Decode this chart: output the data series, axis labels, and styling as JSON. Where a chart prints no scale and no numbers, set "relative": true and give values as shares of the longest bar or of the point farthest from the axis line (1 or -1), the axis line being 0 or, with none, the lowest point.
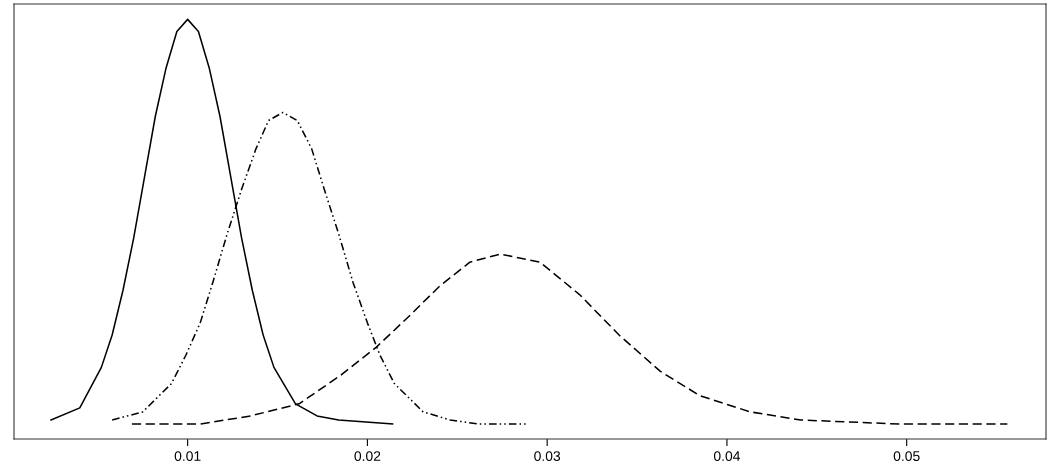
{
  "chart_data": {
    "type": "line",
    "relative": true,
    "xlim": [
      0.00034,
      0.05775
    ],
    "xticks": [
      0.01,
      0.02,
      0.03,
      0.04,
      0.05
    ],
    "marker": "none",
    "tick_labels": "x",
    "series": [
      {
        "color": "#000000",
        "line_style": "solid",
        "x": [
          0.0024,
          0.004,
          0.0052,
          0.0058,
          0.0064,
          0.007,
          0.0076,
          0.0082,
          0.0088,
          0.0094,
          0.01,
          0.0106,
          0.0112,
          0.0118,
          0.0124,
          0.013,
          0.0136,
          0.0142,
          0.0148,
          0.016,
          0.0172,
          0.0184,
          0.0214
        ],
        "values": [
          0.01,
          0.04,
          0.14,
          0.22,
          0.33,
          0.46,
          0.61,
          0.76,
          0.88,
          0.97,
          1,
          0.97,
          0.88,
          0.76,
          0.61,
          0.46,
          0.33,
          0.22,
          0.14,
          0.05,
          0.02,
          0.01,
          0
        ]
      },
      {
        "color": "#000000",
        "line_style": "dashdot",
        "x": [
          0.0058,
          0.0075,
          0.0091,
          0.0099,
          0.0107,
          0.0114,
          0.0122,
          0.013,
          0.0138,
          0.0145,
          0.0153,
          0.0161,
          0.0169,
          0.0176,
          0.0184,
          0.0192,
          0.02,
          0.0207,
          0.0215,
          0.0231,
          0.0246,
          0.0262,
          0.0289
        ],
        "values": [
          0.01,
          0.03,
          0.1,
          0.17,
          0.25,
          0.35,
          0.47,
          0.58,
          0.68,
          0.75,
          0.77,
          0.75,
          0.68,
          0.58,
          0.47,
          0.35,
          0.25,
          0.17,
          0.1,
          0.03,
          0.01,
          0,
          0
        ]
      },
      {
        "color": "#000000",
        "line_style": "dashed",
        "x": [
          0.0069,
          0.0107,
          0.0135,
          0.0162,
          0.0185,
          0.0205,
          0.0224,
          0.024,
          0.0257,
          0.0274,
          0.0296,
          0.0318,
          0.034,
          0.0363,
          0.0385,
          0.0413,
          0.0441,
          0.0496,
          0.0556
        ],
        "values": [
          0,
          0,
          0.02,
          0.05,
          0.12,
          0.19,
          0.27,
          0.34,
          0.4,
          0.42,
          0.4,
          0.32,
          0.22,
          0.13,
          0.07,
          0.03,
          0.01,
          0,
          0
        ]
      }
    ]
  }
}
